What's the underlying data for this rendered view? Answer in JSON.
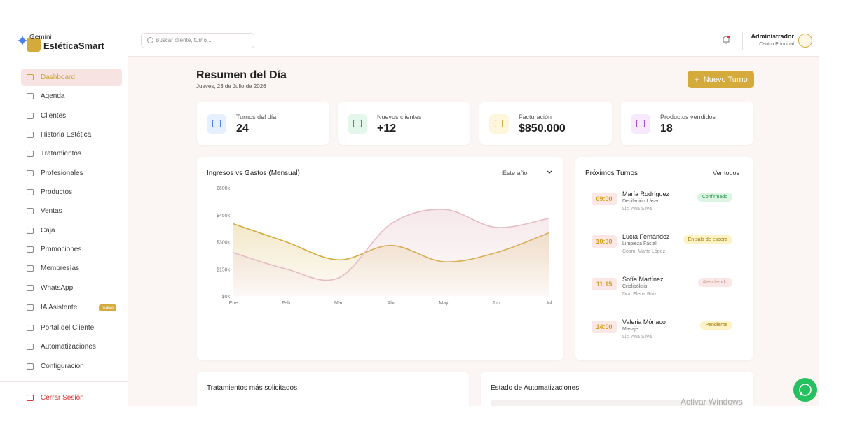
{
  "brand": {
    "badge": "Gemini",
    "name": "EstéticaSmart"
  },
  "search": {
    "placeholder": "Buscar cliente, turno..."
  },
  "user": {
    "name": "Administrador",
    "location": "Centro Principal"
  },
  "sidebar": {
    "items": [
      "Dashboard",
      "Agenda",
      "Clientes",
      "Historia Estética",
      "Tratamientos",
      "Profesionales",
      "Productos",
      "Ventas",
      "Caja",
      "Promociones",
      "Membresías",
      "WhatsApp",
      "IA Asistente",
      "Portal del Cliente",
      "Automatizaciones",
      "Configuración"
    ],
    "new_badge": "Nuevo",
    "logout": "Cerrar Sesión"
  },
  "header": {
    "title": "Resumen del Día",
    "date": "Jueves, 23 de Julio de 2026",
    "button": "Nuevo Turno"
  },
  "stats": [
    {
      "label": "Turnos del día",
      "value": 24
    },
    {
      "label": "Nuevos clientes",
      "value": "+12"
    },
    {
      "label": "Facturación",
      "value": "$850.000"
    },
    {
      "label": "Productos vendidos",
      "value": 18
    }
  ],
  "chart_data": {
    "type": "area",
    "title": "Ingresos vs Gastos (Mensual)",
    "filter": "Este año",
    "categories": [
      "Ene",
      "Feb",
      "Mar",
      "Abr",
      "May",
      "Jun",
      "Jul"
    ],
    "series": [
      {
        "color": "#d4aa3a",
        "values": [
          400000,
          300000,
          200000,
          280000,
          190000,
          240000,
          350000
        ]
      },
      {
        "color": "#e4bcc4",
        "values": [
          240000,
          150000,
          100000,
          400000,
          480000,
          380000,
          430000
        ]
      }
    ],
    "ylim": [
      0,
      600000
    ],
    "yticks": [
      {
        "value": 0,
        "label": "$0k"
      },
      {
        "value": 150000,
        "label": "$150k"
      },
      {
        "value": 300000,
        "label": "$300k"
      },
      {
        "value": 450000,
        "label": "$450k"
      },
      {
        "value": 600000,
        "label": "$600k"
      }
    ]
  },
  "upcoming": {
    "title": "Próximos Turnos",
    "link": "Ver todos",
    "items": [
      {
        "time": "09:00",
        "name": "María Rodríguez",
        "service": "Depilación Láser",
        "professional": "Lic. Ana Silva",
        "status": "Confirmado"
      },
      {
        "time": "10:30",
        "name": "Lucía Fernández",
        "service": "Limpieza Facial",
        "professional": "Cosm. Marta López",
        "status": "En sala de espera"
      },
      {
        "time": "11:15",
        "name": "Sofía Martínez",
        "service": "Criolipólisis",
        "professional": "Dra. Elena Ruiz",
        "status": "Atendiendo"
      },
      {
        "time": "14:00",
        "name": "Valeria Mónaco",
        "service": "Masaje",
        "professional": "Lic. Ana Silva",
        "status": "Pendiente"
      }
    ]
  },
  "panels": [
    "Tratamientos más solicitados",
    "Estado de Automatizaciones"
  ],
  "watermark": "Activar Windows"
}
